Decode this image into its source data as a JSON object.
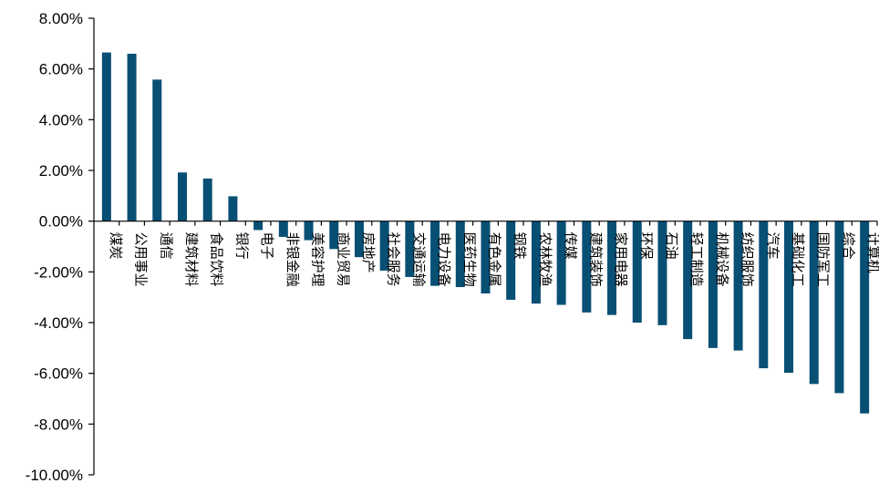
{
  "chart_data": {
    "type": "bar",
    "title": "",
    "xlabel": "",
    "ylabel": "",
    "ylim": [
      -10,
      8
    ],
    "ytick_step": 2,
    "ytick_labels": [
      "8.00%",
      "6.00%",
      "4.00%",
      "2.00%",
      "0.00%",
      "-2.00%",
      "-4.00%",
      "-6.00%",
      "-8.00%",
      "-10.00%"
    ],
    "categories": [
      "煤炭",
      "公用事业",
      "通信",
      "建筑材料",
      "食品饮料",
      "银行",
      "电子",
      "非银金融",
      "美容护理",
      "商业贸易",
      "房地产",
      "社会服务",
      "交通运输",
      "电力设备",
      "医药生物",
      "有色金属",
      "钢铁",
      "农林牧渔",
      "传媒",
      "建筑装饰",
      "家用电器",
      "环保",
      "石油",
      "轻工制造",
      "机械设备",
      "纺织服饰",
      "汽车",
      "基础化工",
      "国防军工",
      "综合",
      "计算机"
    ],
    "values": [
      6.65,
      6.6,
      5.58,
      1.92,
      1.68,
      0.98,
      -0.35,
      -0.62,
      -0.75,
      -1.1,
      -1.42,
      -1.95,
      -2.2,
      -2.55,
      -2.6,
      -2.85,
      -3.1,
      -3.25,
      -3.3,
      -3.6,
      -3.7,
      -4.0,
      -4.1,
      -4.65,
      -5.0,
      -5.1,
      -5.8,
      -5.98,
      -6.42,
      -6.78,
      -7.58
    ],
    "colors": {
      "bar": "#084f74",
      "axis": "#000000",
      "text": "#000000"
    },
    "grid": false,
    "legend": "none"
  }
}
